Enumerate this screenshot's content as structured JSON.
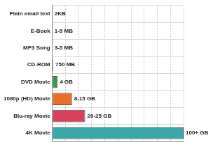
{
  "chart_data": {
    "type": "bar",
    "orientation": "horizontal",
    "categories": [
      "Plain email text",
      "E-Book",
      "MP3 Song",
      "CD-ROM",
      "DVD Movie",
      "1080p (HD) Movie",
      "Blu-ray Movie",
      "4K Movie"
    ],
    "values": [
      2e-06,
      0.005,
      0.005,
      0.75,
      4,
      15,
      25,
      100
    ],
    "value_labels": [
      "2KB",
      "1-5 MB",
      "3-5 MB",
      "750 MB",
      "4 GB",
      "8-15 GB",
      "20-25 GB",
      "100+ GB"
    ],
    "colors": [
      "#e0607a",
      "#e8a030",
      "#e070a0",
      "#3a6fd8",
      "#3a9a4a",
      "#e8702a",
      "#d8405e",
      "#3aa8a8"
    ],
    "xlim": [
      0,
      100
    ],
    "xticks": [
      0,
      10,
      20,
      30,
      40,
      50,
      60,
      70,
      80,
      90,
      100
    ],
    "grid": true,
    "data_labels": true,
    "tick_labels": "y"
  }
}
